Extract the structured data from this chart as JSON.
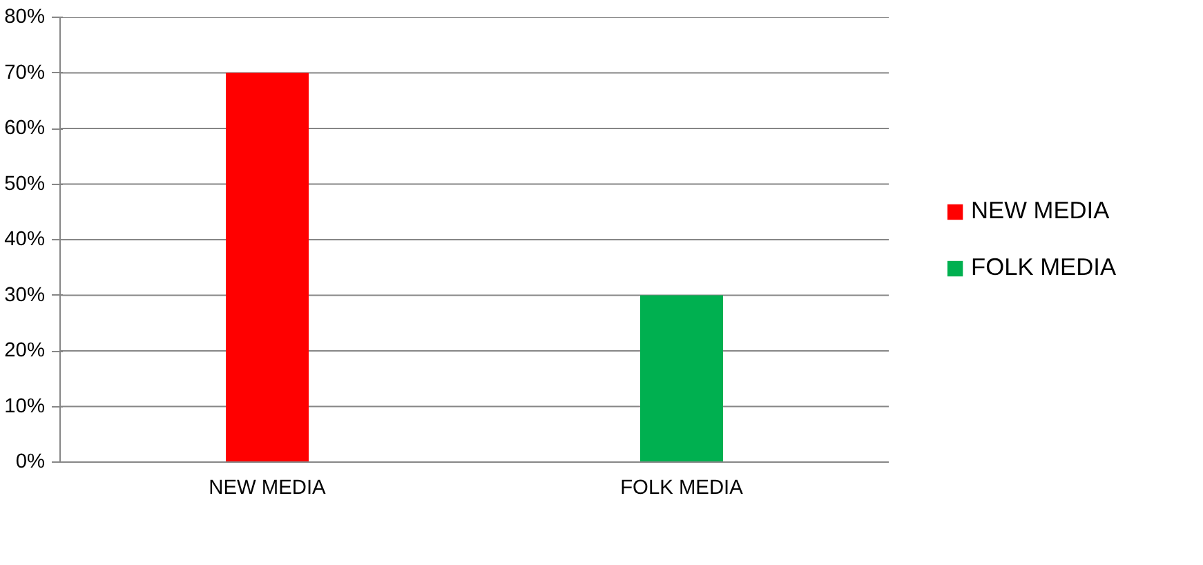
{
  "chart_data": {
    "type": "bar",
    "categories": [
      "NEW MEDIA",
      "FOLK MEDIA"
    ],
    "series": [
      {
        "name": "NEW MEDIA",
        "color": "#ff0000",
        "values": [
          70,
          null
        ]
      },
      {
        "name": "FOLK MEDIA",
        "color": "#00b050",
        "values": [
          null,
          30
        ]
      }
    ],
    "ylim": [
      0,
      80
    ],
    "yticks": [
      {
        "value": 0,
        "label": "0%"
      },
      {
        "value": 10,
        "label": "10%"
      },
      {
        "value": 20,
        "label": "20%"
      },
      {
        "value": 30,
        "label": "30%"
      },
      {
        "value": 40,
        "label": "40%"
      },
      {
        "value": 50,
        "label": "50%"
      },
      {
        "value": 60,
        "label": "60%"
      },
      {
        "value": 70,
        "label": "70%"
      },
      {
        "value": 80,
        "label": "80%"
      }
    ],
    "grid": "y",
    "legend": "right"
  }
}
